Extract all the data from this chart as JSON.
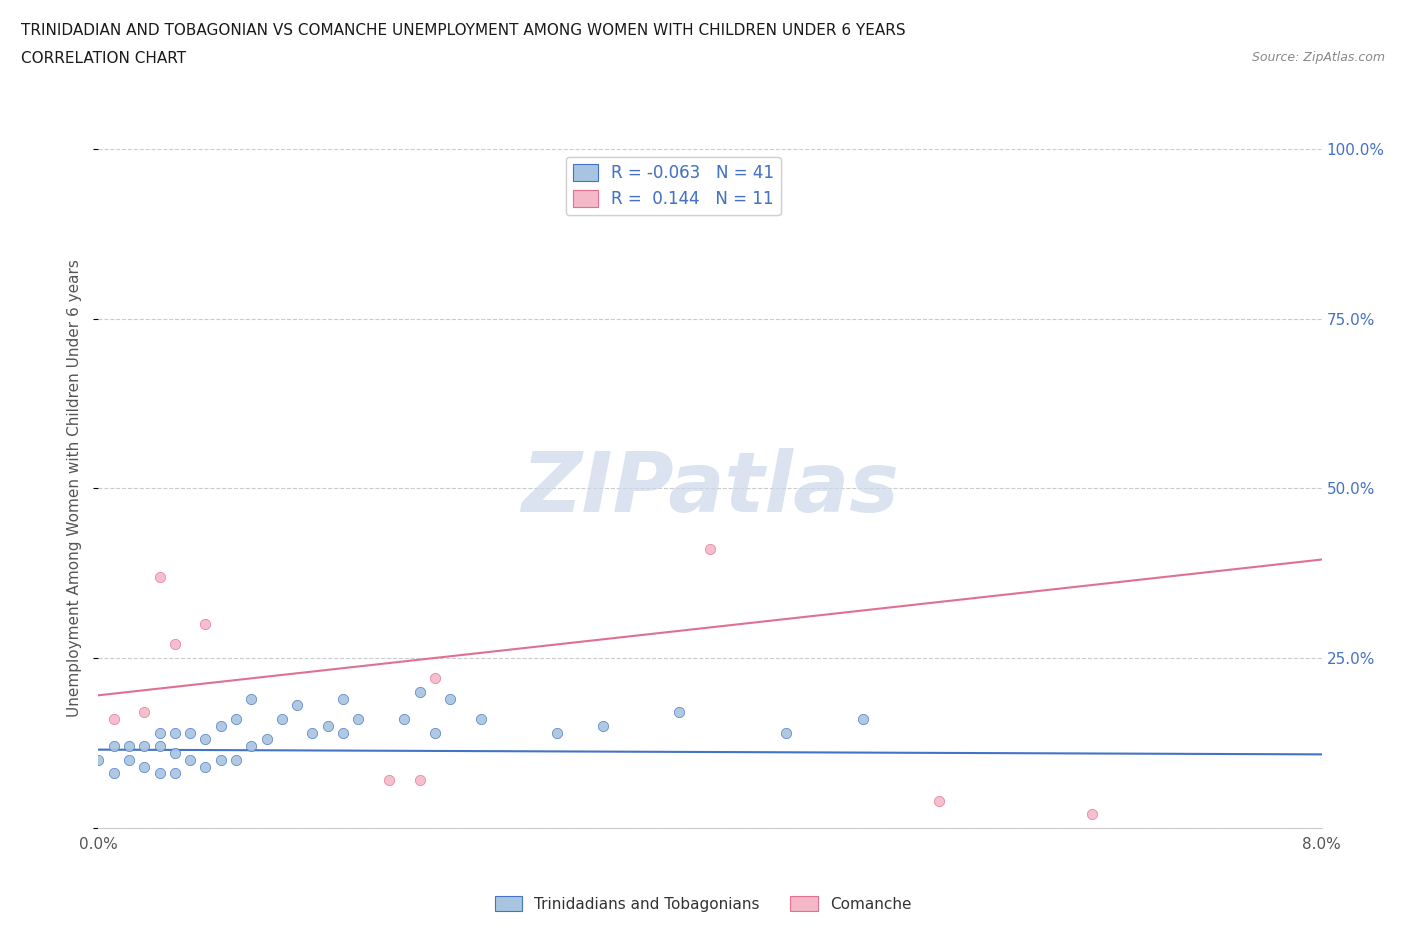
{
  "title_line1": "TRINIDADIAN AND TOBAGONIAN VS COMANCHE UNEMPLOYMENT AMONG WOMEN WITH CHILDREN UNDER 6 YEARS",
  "title_line2": "CORRELATION CHART",
  "source_text": "Source: ZipAtlas.com",
  "ylabel": "Unemployment Among Women with Children Under 6 years",
  "xlim": [
    0.0,
    0.08
  ],
  "ylim": [
    0.0,
    1.0
  ],
  "xticks": [
    0.0,
    0.02,
    0.04,
    0.06,
    0.08
  ],
  "yticks": [
    0.0,
    0.25,
    0.5,
    0.75,
    1.0
  ],
  "ytick_labels": [
    "",
    "25.0%",
    "50.0%",
    "75.0%",
    "100.0%"
  ],
  "background_color": "#ffffff",
  "blue_R": -0.063,
  "blue_N": 41,
  "pink_R": 0.144,
  "pink_N": 11,
  "blue_color": "#a8c4e0",
  "pink_color": "#f4b8c8",
  "blue_line_color": "#4472c4",
  "pink_line_color": "#e07090",
  "legend_label_blue": "Trinidadians and Tobagonians",
  "legend_label_pink": "Comanche",
  "blue_scatter_x": [
    0.0,
    0.001,
    0.001,
    0.002,
    0.002,
    0.003,
    0.003,
    0.004,
    0.004,
    0.004,
    0.005,
    0.005,
    0.005,
    0.006,
    0.006,
    0.007,
    0.007,
    0.008,
    0.008,
    0.009,
    0.009,
    0.01,
    0.01,
    0.011,
    0.012,
    0.013,
    0.014,
    0.015,
    0.016,
    0.016,
    0.017,
    0.02,
    0.021,
    0.022,
    0.023,
    0.025,
    0.03,
    0.033,
    0.038,
    0.045,
    0.05
  ],
  "blue_scatter_y": [
    0.1,
    0.08,
    0.12,
    0.1,
    0.12,
    0.09,
    0.12,
    0.08,
    0.12,
    0.14,
    0.08,
    0.11,
    0.14,
    0.1,
    0.14,
    0.09,
    0.13,
    0.1,
    0.15,
    0.1,
    0.16,
    0.12,
    0.19,
    0.13,
    0.16,
    0.18,
    0.14,
    0.15,
    0.14,
    0.19,
    0.16,
    0.16,
    0.2,
    0.14,
    0.19,
    0.16,
    0.14,
    0.15,
    0.17,
    0.14,
    0.16
  ],
  "pink_scatter_x": [
    0.001,
    0.003,
    0.004,
    0.005,
    0.007,
    0.019,
    0.021,
    0.022,
    0.04,
    0.055,
    0.065
  ],
  "pink_scatter_y": [
    0.16,
    0.17,
    0.37,
    0.27,
    0.3,
    0.07,
    0.07,
    0.22,
    0.41,
    0.04,
    0.02
  ],
  "blue_regline_y0": 0.115,
  "blue_regline_y1": 0.108,
  "pink_regline_y0": 0.195,
  "pink_regline_y1": 0.395,
  "watermark_text": "ZIPatlas",
  "watermark_color": "#ccd8ea",
  "grid_color": "#cccccc",
  "tick_color": "#4472c4",
  "label_color": "#555555"
}
